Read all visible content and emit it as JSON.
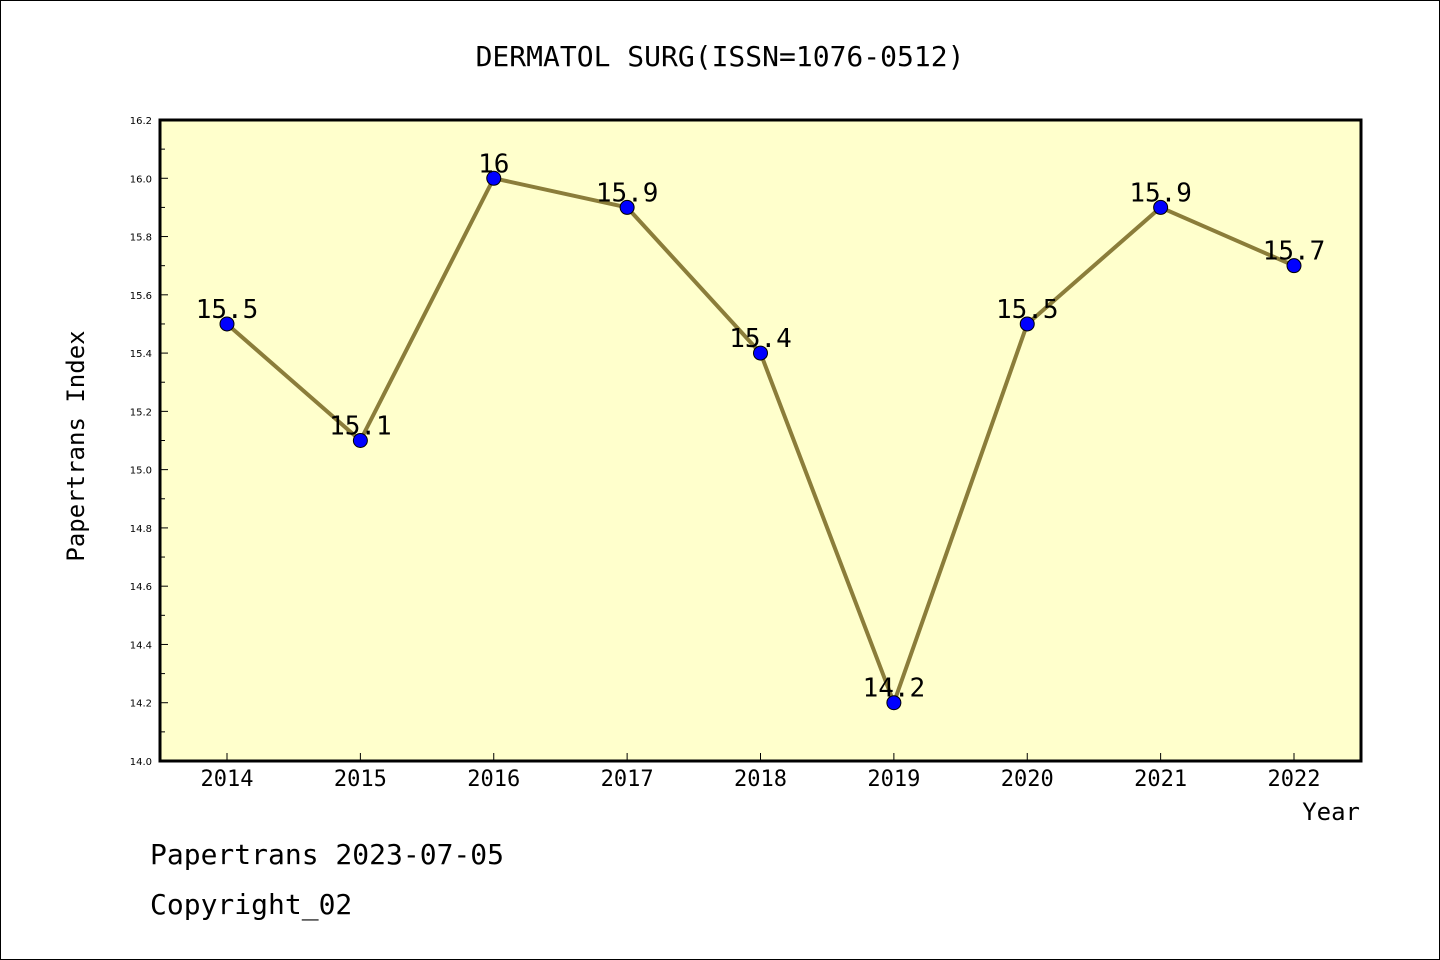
{
  "chart_data": {
    "type": "line",
    "title": "DERMATOL SURG(ISSN=1076-0512)",
    "xlabel": "Year",
    "ylabel": "Papertrans Index",
    "categories": [
      "2014",
      "2015",
      "2016",
      "2017",
      "2018",
      "2019",
      "2020",
      "2021",
      "2022"
    ],
    "series": [
      {
        "values": [
          15.5,
          15.1,
          16.0,
          15.9,
          15.4,
          14.2,
          15.5,
          15.9,
          15.7
        ]
      }
    ],
    "data_labels": [
      "15.5",
      "15.1",
      "16",
      "15.9",
      "15.4",
      "14.2",
      "15.5",
      "15.9",
      "15.7"
    ],
    "ylim": [
      14.0,
      16.2
    ],
    "yticks": [
      "14.0",
      "14.2",
      "14.4",
      "14.6",
      "14.8",
      "15.0",
      "15.2",
      "15.4",
      "15.6",
      "15.8",
      "16.0",
      "16.2"
    ],
    "grid": false,
    "colors": {
      "plot_background": "#ffffcc",
      "line": "#8b7d3a",
      "marker": "#0000ff"
    }
  },
  "footer": {
    "line1": "Papertrans 2023-07-05",
    "line2": "Copyright_02"
  }
}
